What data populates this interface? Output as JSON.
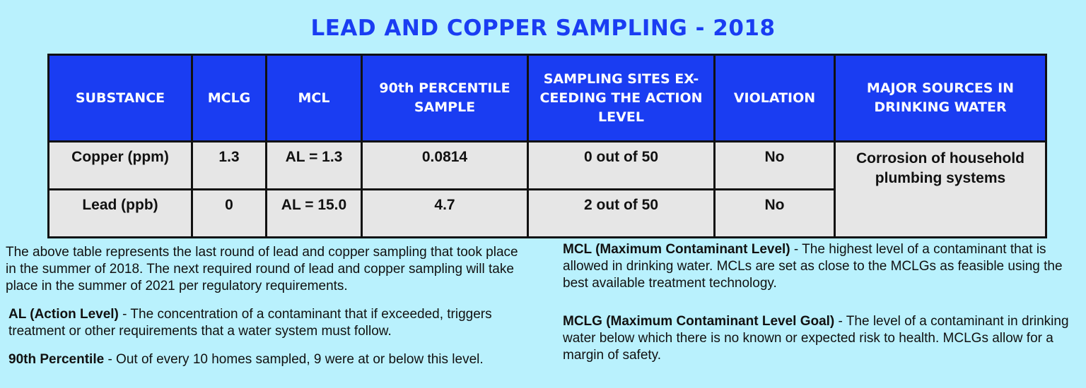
{
  "title": "LEAD AND COPPER SAMPLING - 2018",
  "table": {
    "headers": [
      "SUBSTANCE",
      "MCLG",
      "MCL",
      "90th PERCENTILE SAMPLE",
      "SAMPLING SITES EX- CEEDING THE ACTION LEVEL",
      "VIOLATION",
      "MAJOR SOURCES IN DRINKING WATER"
    ],
    "rows": [
      {
        "substance": "Copper (ppm)",
        "mclg": "1.3",
        "mcl": "AL = 1.3",
        "percentile": "0.0814",
        "sites": "0 out of 50",
        "violation": "No"
      },
      {
        "substance": "Lead (ppb)",
        "mclg": "0",
        "mcl": "AL = 15.0",
        "percentile": "4.7",
        "sites": "2 out of 50",
        "violation": "No"
      }
    ],
    "major_sources": "Corrosion of household plumbing systems"
  },
  "notes": {
    "intro": "The above table represents the last round of lead and copper sampling that took place in the summer of 2018. The next required round of lead and copper sampling will take place in the summer of 2021 per regulatory requirements.",
    "al_term": "AL (Action Level)",
    "al_text": " - The concentration of a contaminant that if exceeded, triggers treatment or other requirements that a water system must follow.",
    "pct_term": "90th Percentile",
    "pct_text": " - Out of every 10 homes sampled, 9 were at or below this level.",
    "mcl_term": "MCL (Maximum Contaminant Level)",
    "mcl_text": " - The highest level of a contaminant that is allowed in drinking water. MCLs are set as close to the MCLGs as feasible using the best available treatment technology.",
    "mclg_term": "MCLG (Maximum Contaminant Level Goal)",
    "mclg_text": " - The level of a contaminant in drinking water below which there is no known or expected risk to health. MCLGs allow for a margin of safety."
  },
  "colors": {
    "background": "#b9f1fd",
    "header_blue": "#1a3df2",
    "cell_gray": "#e6e6e6"
  }
}
